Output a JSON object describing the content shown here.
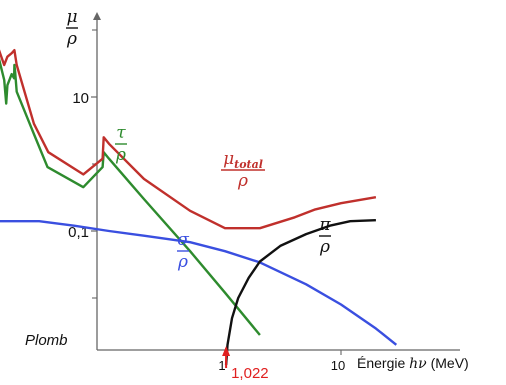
{
  "chart_data": {
    "type": "line",
    "title": "",
    "scale": "log-log",
    "grid": false,
    "legend": "none",
    "y_axis": {
      "label_num": "μ",
      "label_den": "ρ",
      "tick_labels": [
        {
          "y": 10,
          "text": "10"
        },
        {
          "y": 0.1,
          "text": "0,1"
        }
      ],
      "minor_ticks": [
        1000,
        100,
        1,
        0.01
      ]
    },
    "x_axis": {
      "label_prefix": "Énergie ",
      "label_var": "hν",
      "label_suffix": " (MeV)",
      "tick_labels": [
        {
          "x": 1,
          "text": "1"
        },
        {
          "x": 10,
          "text": "10"
        }
      ],
      "xlim": [
        0.01,
        100
      ]
    },
    "ylim": [
      0.001,
      10000
    ],
    "corner_label": "Plomb",
    "threshold": {
      "x": 1.022,
      "label": "1,022",
      "color": "#e02020"
    },
    "series": [
      {
        "key": "tau",
        "name_num": "τ",
        "name_den": "ρ",
        "color": "#2e8b2e",
        "points": [
          [
            0.01,
            85
          ],
          [
            0.0125,
            18
          ],
          [
            0.013,
            8
          ],
          [
            0.0133,
            15
          ],
          [
            0.0145,
            22
          ],
          [
            0.0152,
            19
          ],
          [
            0.0153,
            30
          ],
          [
            0.0155,
            24
          ],
          [
            0.016,
            12
          ],
          [
            0.0225,
            2.8
          ],
          [
            0.0295,
            0.9
          ],
          [
            0.06,
            0.45
          ],
          [
            0.088,
            0.9
          ],
          [
            0.09,
            1.5
          ],
          [
            0.1,
            1.2
          ],
          [
            0.2,
            0.3
          ],
          [
            0.5,
            0.05
          ],
          [
            1,
            0.012
          ],
          [
            2,
            0.0028
          ]
        ]
      },
      {
        "key": "total",
        "name_num": "μ",
        "name_sub": "total",
        "name_den": "ρ",
        "color": "#c0302c",
        "points": [
          [
            0.01,
            90
          ],
          [
            0.0125,
            30
          ],
          [
            0.0133,
            40
          ],
          [
            0.0145,
            45
          ],
          [
            0.0153,
            50
          ],
          [
            0.016,
            30
          ],
          [
            0.0225,
            4
          ],
          [
            0.03,
            1.5
          ],
          [
            0.06,
            0.7
          ],
          [
            0.088,
            1.2
          ],
          [
            0.09,
            2.5
          ],
          [
            0.1,
            2
          ],
          [
            0.2,
            0.6
          ],
          [
            0.5,
            0.2
          ],
          [
            1,
            0.11
          ],
          [
            2,
            0.11
          ],
          [
            4,
            0.16
          ],
          [
            6,
            0.21
          ],
          [
            10,
            0.26
          ],
          [
            20,
            0.32
          ]
        ]
      },
      {
        "key": "sigma",
        "name_num": "σ",
        "name_den": "ρ",
        "color": "#3a4fe0",
        "points": [
          [
            0.01,
            0.14
          ],
          [
            0.025,
            0.14
          ],
          [
            0.05,
            0.12
          ],
          [
            0.1,
            0.1
          ],
          [
            0.2,
            0.085
          ],
          [
            0.5,
            0.068
          ],
          [
            1,
            0.05
          ],
          [
            2,
            0.034
          ],
          [
            5,
            0.016
          ],
          [
            10,
            0.008
          ],
          [
            20,
            0.0035
          ],
          [
            30,
            0.002
          ]
        ]
      },
      {
        "key": "pi",
        "name_num": "π",
        "name_den": "ρ",
        "color": "#111111",
        "points": [
          [
            1.022,
            0.001
          ],
          [
            1.05,
            0.002
          ],
          [
            1.15,
            0.005
          ],
          [
            1.3,
            0.01
          ],
          [
            1.6,
            0.02
          ],
          [
            2,
            0.035
          ],
          [
            3,
            0.06
          ],
          [
            5,
            0.09
          ],
          [
            8,
            0.12
          ],
          [
            12,
            0.14
          ],
          [
            20,
            0.145
          ]
        ]
      }
    ]
  }
}
